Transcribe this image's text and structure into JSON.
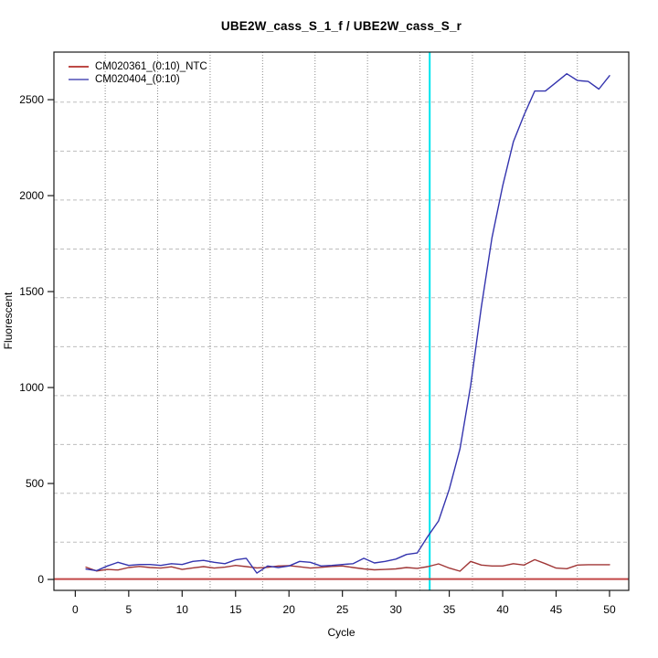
{
  "title": "UBE2W_cass_S_1_f / UBE2W_cass_S_r",
  "legend": {
    "items": [
      {
        "label": "CM020361_(0:10)_NTC",
        "color": "#bd4a46"
      },
      {
        "label": "CM020404_(0:10)",
        "color": "#7b7bc8"
      }
    ]
  },
  "axes": {
    "x": {
      "label": "Cycle",
      "ticks": [
        0,
        5,
        10,
        15,
        20,
        25,
        30,
        35,
        40,
        45,
        50
      ]
    },
    "y": {
      "label": "Fluorescent",
      "ticks": [
        0,
        500,
        1000,
        1500,
        2000,
        2500
      ]
    }
  },
  "chart_data": {
    "type": "line",
    "title": "UBE2W_cass_S_1_f / UBE2W_cass_S_r",
    "xlabel": "Cycle",
    "ylabel": "Fluorescent",
    "xlim": [
      -2,
      51.8
    ],
    "ylim": [
      -57,
      2748
    ],
    "grid": true,
    "grid_x": [
      2.8,
      7.71,
      12.62,
      17.53,
      22.44,
      27.35,
      32.26,
      37.17,
      42.08,
      46.99
    ],
    "grid_y": [
      194,
      449,
      703,
      958,
      1213,
      1468,
      1722,
      1977,
      2232,
      2487
    ],
    "x": [
      1,
      2,
      3,
      4,
      5,
      6,
      7,
      8,
      9,
      10,
      11,
      12,
      13,
      14,
      15,
      16,
      17,
      18,
      19,
      20,
      21,
      22,
      23,
      24,
      25,
      26,
      27,
      28,
      29,
      30,
      31,
      32,
      33,
      34,
      35,
      36,
      37,
      38,
      39,
      40,
      41,
      42,
      43,
      44,
      45,
      46,
      47,
      48,
      49,
      50
    ],
    "series": [
      {
        "name": "CM020361_(0:10)_NTC",
        "color": "#a03636",
        "values": [
          64,
          44,
          52,
          49,
          62,
          68,
          62,
          59,
          66,
          52,
          60,
          67,
          59,
          64,
          73,
          67,
          60,
          63,
          70,
          72,
          66,
          59,
          63,
          68,
          70,
          62,
          55,
          50,
          52,
          55,
          62,
          58,
          67,
          81,
          59,
          43,
          94,
          75,
          70,
          70,
          82,
          75,
          103,
          82,
          59,
          56,
          75,
          77,
          77,
          77
        ]
      },
      {
        "name": "CM020404_(0:10)",
        "color": "#3434ae",
        "values": [
          54,
          46,
          70,
          89,
          73,
          78,
          78,
          73,
          82,
          78,
          94,
          99,
          89,
          82,
          102,
          110,
          33,
          70,
          62,
          70,
          94,
          89,
          70,
          73,
          78,
          82,
          110,
          86,
          94,
          106,
          130,
          138,
          225,
          305,
          470,
          680,
          1010,
          1420,
          1780,
          2050,
          2280,
          2420,
          2545,
          2545,
          2590,
          2635,
          2600,
          2595,
          2555,
          2625
        ]
      }
    ],
    "threshold_line": {
      "y": 2,
      "color": "#c24646"
    },
    "ct_line": {
      "x": 33.17,
      "color": "#00e5ee"
    },
    "legend_position": "top-left"
  }
}
